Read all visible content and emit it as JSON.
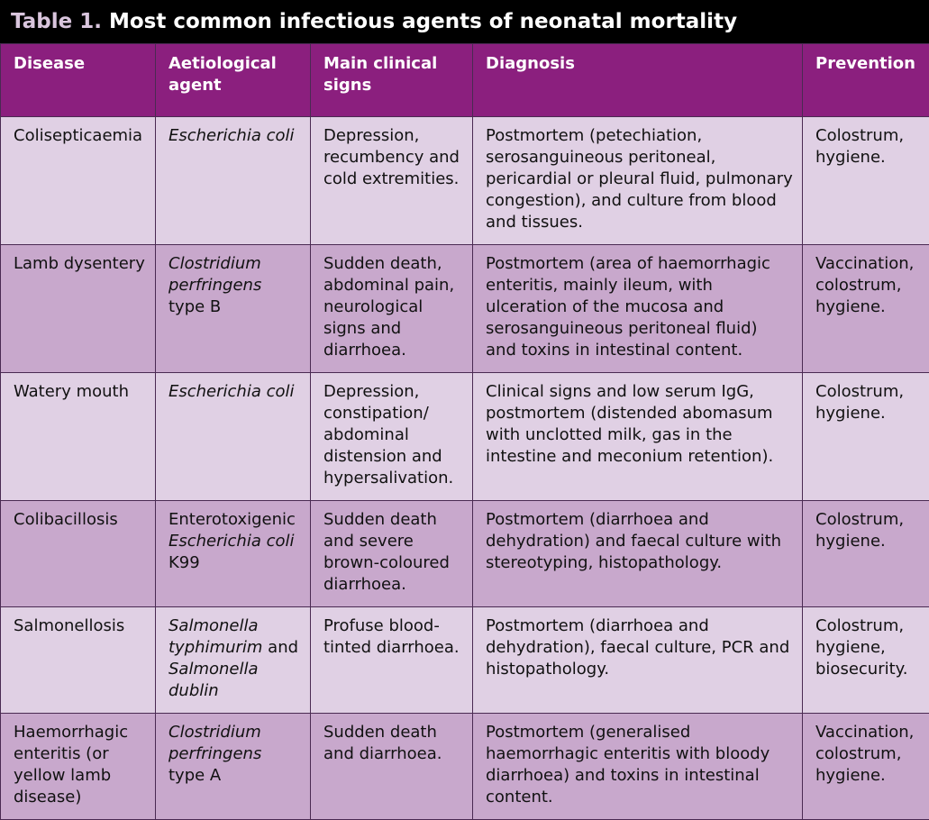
{
  "title": {
    "lead": "Table 1.",
    "text": " Most common infectious agents of neonatal mortality"
  },
  "headers": [
    "Disease",
    "Aetiological agent",
    "Main clinical signs",
    "Diagnosis",
    "Prevention"
  ],
  "rows": [
    {
      "disease": "Colisepticaemia",
      "agent": [
        {
          "text": "Escherichia coli",
          "italic": true
        }
      ],
      "signs": "Depression, recumbency and cold extremities.",
      "diagnosis": "Postmortem (petechiation, serosanguineous peritoneal, pericardial or pleural fluid, pulmonary congestion), and culture from blood and tissues.",
      "prevention": "Colostrum, hygiene."
    },
    {
      "disease": "Lamb dysentery",
      "agent": [
        {
          "text": "Clostridium perfringens",
          "italic": true
        },
        {
          "text": " type B",
          "italic": false
        }
      ],
      "signs": "Sudden death, abdominal pain, neurological signs and diarrhoea.",
      "diagnosis": "Postmortem (area of haemorrhagic enteritis, mainly ileum, with ulceration of the mucosa and serosanguineous peritoneal fluid) and toxins in intestinal content.",
      "prevention": "Vaccination, colostrum, hygiene."
    },
    {
      "disease": "Watery mouth",
      "agent": [
        {
          "text": "Escherichia coli",
          "italic": true
        }
      ],
      "signs": "Depression, constipation/ abdominal distension and hypersalivation.",
      "diagnosis": "Clinical signs and low serum IgG, postmortem (distended abomasum with unclotted milk, gas in the intestine and meconium retention).",
      "prevention": "Colostrum, hygiene."
    },
    {
      "disease": "Colibacillosis",
      "agent": [
        {
          "text": "Enterotoxigenic ",
          "italic": false
        },
        {
          "text": "Escherichia coli",
          "italic": true
        },
        {
          "text": " K99",
          "italic": false
        }
      ],
      "signs": "Sudden death and severe brown-coloured diarrhoea.",
      "diagnosis": "Postmortem (diarrhoea and dehydration) and faecal culture with stereotyping, histopathology.",
      "prevention": "Colostrum, hygiene."
    },
    {
      "disease": "Salmonellosis",
      "agent": [
        {
          "text": "Salmonella typhimurim",
          "italic": true
        },
        {
          "text": " and ",
          "italic": false
        },
        {
          "text": "Salmonella dublin",
          "italic": true
        }
      ],
      "signs": "Profuse blood-tinted diarrhoea.",
      "diagnosis": "Postmortem (diarrhoea and dehydration), faecal culture, PCR and histopathology.",
      "prevention": "Colostrum, hygiene, biosecurity."
    },
    {
      "disease": "Haemorrhagic enteritis (or yellow lamb disease)",
      "agent": [
        {
          "text": "Clostridium perfringens",
          "italic": true
        },
        {
          "text": " type A",
          "italic": false
        }
      ],
      "signs": "Sudden death and diarrhoea.",
      "diagnosis": "Postmortem (generalised haemorrhagic enteritis with bloody diarrhoea) and toxins in intestinal content.",
      "prevention": "Vaccination, colostrum, hygiene."
    }
  ]
}
